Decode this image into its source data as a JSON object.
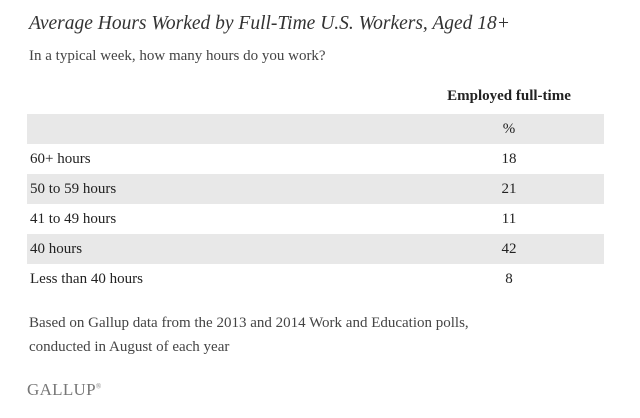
{
  "header": {
    "title": "Average Hours Worked by Full-Time U.S. Workers, Aged 18+",
    "subtitle": "In a typical week, how many hours do you work?"
  },
  "table": {
    "columns": [
      "Employed full-time"
    ],
    "unit_row": "%",
    "rows": [
      [
        "60+ hours",
        18
      ],
      [
        "50 to 59 hours",
        21
      ],
      [
        "41 to 49 hours",
        11
      ],
      [
        "40 hours",
        42
      ],
      [
        "Less than 40 hours",
        8
      ]
    ]
  },
  "footnote": [
    "Based on Gallup data from the 2013 and 2014 Work and Education polls,",
    "conducted in August of each year"
  ],
  "logo": {
    "text": "GALLUP",
    "mark": "®"
  }
}
